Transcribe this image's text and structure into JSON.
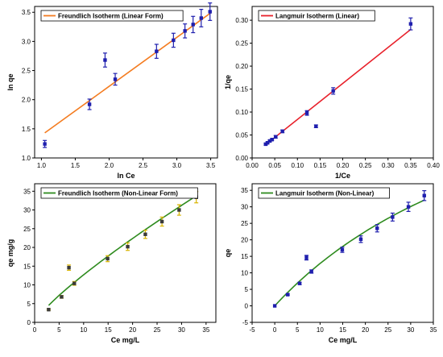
{
  "chart_data": [
    {
      "id": "freundlich-linear",
      "type": "scatter",
      "legend": "Freundlich Isotherm (Linear Form)",
      "xlabel": "ln Ce",
      "ylabel": "ln qe",
      "xlim": [
        0.9,
        3.6
      ],
      "ylim": [
        1.0,
        3.6
      ],
      "xticks": [
        "1.0",
        "1.5",
        "2.0",
        "2.5",
        "3.0",
        "3.5"
      ],
      "yticks": [
        "1.0",
        "1.5",
        "2.0",
        "2.5",
        "3.0",
        "3.5"
      ],
      "line_color": "#f47c20",
      "marker_color": "#1f1fae",
      "errorbar_color": "#1f1fae",
      "fit_line": {
        "x": [
          1.05,
          3.5
        ],
        "y": [
          1.43,
          3.49
        ]
      },
      "points": [
        {
          "x": 1.05,
          "y": 1.24,
          "err": 0.06
        },
        {
          "x": 1.71,
          "y": 1.92,
          "err": 0.09
        },
        {
          "x": 1.94,
          "y": 2.68,
          "err": 0.12
        },
        {
          "x": 2.09,
          "y": 2.35,
          "err": 0.1
        },
        {
          "x": 2.7,
          "y": 2.83,
          "err": 0.12
        },
        {
          "x": 2.95,
          "y": 3.02,
          "err": 0.12
        },
        {
          "x": 3.12,
          "y": 3.18,
          "err": 0.12
        },
        {
          "x": 3.24,
          "y": 3.29,
          "err": 0.14
        },
        {
          "x": 3.36,
          "y": 3.4,
          "err": 0.15
        },
        {
          "x": 3.49,
          "y": 3.51,
          "err": 0.15
        }
      ]
    },
    {
      "id": "langmuir-linear",
      "type": "scatter",
      "legend": "Langmuir Isotherm (Linear)",
      "xlabel": "1/Ce",
      "ylabel": "1/qe",
      "xlim": [
        0.0,
        0.4
      ],
      "ylim": [
        0.0,
        0.33
      ],
      "xticks": [
        "0.00",
        "0.05",
        "0.10",
        "0.15",
        "0.20",
        "0.25",
        "0.30",
        "0.35",
        "0.40"
      ],
      "yticks": [
        "0.00",
        "0.05",
        "0.10",
        "0.15",
        "0.20",
        "0.25",
        "0.30"
      ],
      "line_color": "#e8202a",
      "marker_color": "#1f1fae",
      "errorbar_color": "#1f1fae",
      "fit_line": {
        "x": [
          0.03,
          0.35
        ],
        "y": [
          0.029,
          0.28
        ]
      },
      "points": [
        {
          "x": 0.03,
          "y": 0.03,
          "err": 0.002
        },
        {
          "x": 0.034,
          "y": 0.033,
          "err": 0.002
        },
        {
          "x": 0.039,
          "y": 0.037,
          "err": 0.002
        },
        {
          "x": 0.044,
          "y": 0.04,
          "err": 0.002
        },
        {
          "x": 0.052,
          "y": 0.046,
          "err": 0.003
        },
        {
          "x": 0.067,
          "y": 0.058,
          "err": 0.003
        },
        {
          "x": 0.121,
          "y": 0.098,
          "err": 0.005
        },
        {
          "x": 0.141,
          "y": 0.069,
          "err": 0.003
        },
        {
          "x": 0.179,
          "y": 0.146,
          "err": 0.007
        },
        {
          "x": 0.35,
          "y": 0.292,
          "err": 0.013
        }
      ]
    },
    {
      "id": "freundlich-nonlinear",
      "type": "scatter",
      "legend": "Freundlich Isotherm (Non-Linear Form)",
      "xlabel": "Ce mg/L",
      "ylabel": "qe mg/g",
      "xlim": [
        0,
        37
      ],
      "ylim": [
        0,
        37
      ],
      "xticks": [
        "0",
        "5",
        "10",
        "15",
        "20",
        "25",
        "30",
        "35"
      ],
      "yticks": [
        "0",
        "5",
        "10",
        "15",
        "20",
        "25",
        "30",
        "35"
      ],
      "line_color": "#2e8b1e",
      "marker_color": "#3a3a3a",
      "errorbar_color": "#d8b400",
      "fit_curve": {
        "k": 1.92,
        "n": 0.82,
        "x_start": 2.86,
        "x_end": 33.0
      },
      "points": [
        {
          "x": 2.86,
          "y": 3.4,
          "err": 0.2
        },
        {
          "x": 5.5,
          "y": 6.8,
          "err": 0.35
        },
        {
          "x": 7.0,
          "y": 14.6,
          "err": 0.7
        },
        {
          "x": 8.1,
          "y": 10.4,
          "err": 0.5
        },
        {
          "x": 14.9,
          "y": 17.0,
          "err": 0.8
        },
        {
          "x": 19.0,
          "y": 20.2,
          "err": 1.0
        },
        {
          "x": 22.6,
          "y": 23.5,
          "err": 1.1
        },
        {
          "x": 26.0,
          "y": 26.9,
          "err": 1.2
        },
        {
          "x": 29.5,
          "y": 30.0,
          "err": 1.4
        },
        {
          "x": 33.0,
          "y": 33.4,
          "err": 1.5
        }
      ]
    },
    {
      "id": "langmuir-nonlinear",
      "type": "scatter",
      "legend": "Langmuir Isotherm (Non-Linear)",
      "xlabel": "Ce mg/L",
      "ylabel": "qe",
      "xlim": [
        -5,
        35
      ],
      "ylim": [
        -5,
        37
      ],
      "xticks": [
        "-5",
        "0",
        "5",
        "10",
        "15",
        "20",
        "25",
        "30",
        "35"
      ],
      "yticks": [
        "-5",
        "0",
        "5",
        "10",
        "15",
        "20",
        "25",
        "30",
        "35"
      ],
      "line_color": "#2e8b1e",
      "marker_color": "#1f1fae",
      "errorbar_color": "#1f1fae",
      "fit_curve": {
        "qmax": 91.6,
        "kl": 0.0163,
        "x_start": 0.0,
        "x_end": 33.0
      },
      "points": [
        {
          "x": 0.0,
          "y": 0.0,
          "err": 0.0
        },
        {
          "x": 2.86,
          "y": 3.4,
          "err": 0.2
        },
        {
          "x": 5.5,
          "y": 6.8,
          "err": 0.35
        },
        {
          "x": 7.0,
          "y": 14.6,
          "err": 0.7
        },
        {
          "x": 8.1,
          "y": 10.4,
          "err": 0.5
        },
        {
          "x": 14.9,
          "y": 17.0,
          "err": 0.8
        },
        {
          "x": 19.0,
          "y": 20.2,
          "err": 1.0
        },
        {
          "x": 22.6,
          "y": 23.5,
          "err": 1.1
        },
        {
          "x": 26.0,
          "y": 26.9,
          "err": 1.2
        },
        {
          "x": 29.5,
          "y": 30.0,
          "err": 1.4
        },
        {
          "x": 33.0,
          "y": 33.4,
          "err": 1.5
        }
      ]
    }
  ]
}
